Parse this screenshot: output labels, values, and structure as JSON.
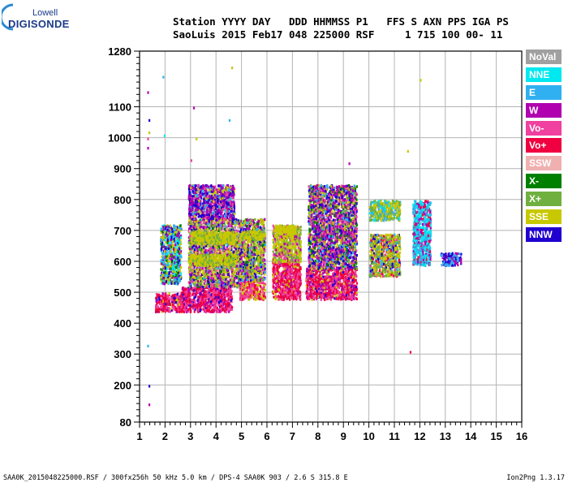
{
  "logo": {
    "brand_top": "Lowell",
    "brand_main": "DIGISONDE"
  },
  "header": {
    "line1": "Station YYYY DAY   DDD HHMMSS P1   FFS S AXN PPS IGA PS",
    "line2": "SaoLuis 2015 Feb17 048 225000 RSF     1 715 100 00- 11"
  },
  "legend": [
    {
      "label": "NoVal",
      "color": "#a0a0a0"
    },
    {
      "label": "NNE",
      "color": "#00e8f0"
    },
    {
      "label": "E",
      "color": "#30b0f0"
    },
    {
      "label": "W",
      "color": "#b000b0"
    },
    {
      "label": "Vo-",
      "color": "#f040a0"
    },
    {
      "label": "Vo+",
      "color": "#f00040"
    },
    {
      "label": "SSW",
      "color": "#f0b0b0"
    },
    {
      "label": "X-",
      "color": "#008000"
    },
    {
      "label": "X+",
      "color": "#70b040"
    },
    {
      "label": "SSE",
      "color": "#c8c800"
    },
    {
      "label": "NNW",
      "color": "#2000d0"
    }
  ],
  "footer": {
    "left": "SAA0K_2015048225000.RSF / 300fx256h 50 kHz 5.0 km / DPS-4 SAA0K 903 / 2.6 S 315.8 E",
    "right": "Ion2Png 1.3.17"
  },
  "chart_data": {
    "type": "scatter",
    "x_ticks": [
      1,
      2,
      3,
      4,
      5,
      6,
      7,
      8,
      9,
      10,
      11,
      12,
      13,
      14,
      15,
      16
    ],
    "y_ticks": [
      80,
      200,
      300,
      400,
      500,
      600,
      700,
      800,
      900,
      1000,
      1100,
      1280
    ],
    "xlim": [
      1,
      16
    ],
    "ylim": [
      80,
      1280
    ],
    "grid": true,
    "legend_position": "right",
    "clusters": [
      {
        "x": [
          1.6,
          2.7
        ],
        "y": [
          440,
          500
        ],
        "color_weights": {
          "Vo+": 5,
          "Vo-": 4,
          "W": 1,
          "NNW": 1,
          "SSE": 1
        }
      },
      {
        "x": [
          2.6,
          4.6
        ],
        "y": [
          440,
          520
        ],
        "color_weights": {
          "Vo+": 5,
          "Vo-": 5,
          "W": 2,
          "NNW": 1
        }
      },
      {
        "x": [
          2.9,
          4.9
        ],
        "y": [
          520,
          740
        ],
        "color_weights": {
          "SSE": 4,
          "X+": 3,
          "W": 3,
          "NNW": 2,
          "Vo-": 2,
          "E": 1,
          "X-": 1,
          "SSW": 1
        }
      },
      {
        "x": [
          3.0,
          4.8
        ],
        "y": [
          660,
          700
        ],
        "color_weights": {
          "SSE": 6,
          "X+": 2
        }
      },
      {
        "x": [
          2.9,
          4.8
        ],
        "y": [
          590,
          625
        ],
        "color_weights": {
          "SSE": 6,
          "X+": 2
        }
      },
      {
        "x": [
          2.9,
          4.7
        ],
        "y": [
          740,
          850
        ],
        "color_weights": {
          "W": 3,
          "NNW": 3,
          "E": 1,
          "SSE": 1,
          "Vo-": 1
        }
      },
      {
        "x": [
          1.8,
          2.6
        ],
        "y": [
          530,
          720
        ],
        "color_weights": {
          "SSE": 3,
          "E": 2,
          "NNE": 2,
          "W": 2,
          "NNW": 2,
          "X-": 1
        }
      },
      {
        "x": [
          4.9,
          5.9
        ],
        "y": [
          480,
          540
        ],
        "color_weights": {
          "Vo-": 4,
          "Vo+": 3,
          "SSE": 2
        }
      },
      {
        "x": [
          4.9,
          5.9
        ],
        "y": [
          540,
          740
        ],
        "color_weights": {
          "SSE": 4,
          "X+": 2,
          "W": 2,
          "NNW": 2,
          "X-": 1,
          "Vo-": 1,
          "E": 1
        }
      },
      {
        "x": [
          4.9,
          5.9
        ],
        "y": [
          675,
          700
        ],
        "color_weights": {
          "SSE": 7,
          "X+": 2
        }
      },
      {
        "x": [
          6.2,
          7.3
        ],
        "y": [
          480,
          600
        ],
        "color_weights": {
          "Vo+": 5,
          "Vo-": 4,
          "W": 1,
          "SSE": 1
        }
      },
      {
        "x": [
          6.2,
          7.3
        ],
        "y": [
          600,
          720
        ],
        "color_weights": {
          "SSE": 4,
          "X+": 2,
          "Vo-": 1,
          "W": 1
        }
      },
      {
        "x": [
          6.3,
          7.1
        ],
        "y": [
          690,
          720
        ],
        "color_weights": {
          "SSE": 6
        }
      },
      {
        "x": [
          7.5,
          9.5
        ],
        "y": [
          480,
          580
        ],
        "color_weights": {
          "Vo+": 5,
          "Vo-": 4,
          "W": 2,
          "SSE": 1,
          "NNW": 1
        }
      },
      {
        "x": [
          7.6,
          9.5
        ],
        "y": [
          580,
          850
        ],
        "color_weights": {
          "W": 3,
          "NNW": 3,
          "Vo-": 2,
          "SSE": 2,
          "X+": 1,
          "E": 1,
          "X-": 1
        }
      },
      {
        "x": [
          10.0,
          11.2
        ],
        "y": [
          555,
          690
        ],
        "color_weights": {
          "SSE": 4,
          "X+": 3,
          "Vo+": 1,
          "Vo-": 1,
          "NNW": 1,
          "E": 1
        }
      },
      {
        "x": [
          10.0,
          11.2
        ],
        "y": [
          735,
          800
        ],
        "color_weights": {
          "SSE": 4,
          "X+": 3,
          "E": 2,
          "NNE": 1
        }
      },
      {
        "x": [
          11.7,
          12.4
        ],
        "y": [
          590,
          800
        ],
        "color_weights": {
          "NNE": 2,
          "E": 2,
          "Vo+": 1,
          "W": 1
        }
      },
      {
        "x": [
          12.8,
          13.6
        ],
        "y": [
          590,
          630
        ],
        "color_weights": {
          "W": 2,
          "NNW": 2,
          "E": 2
        }
      }
    ]
  }
}
